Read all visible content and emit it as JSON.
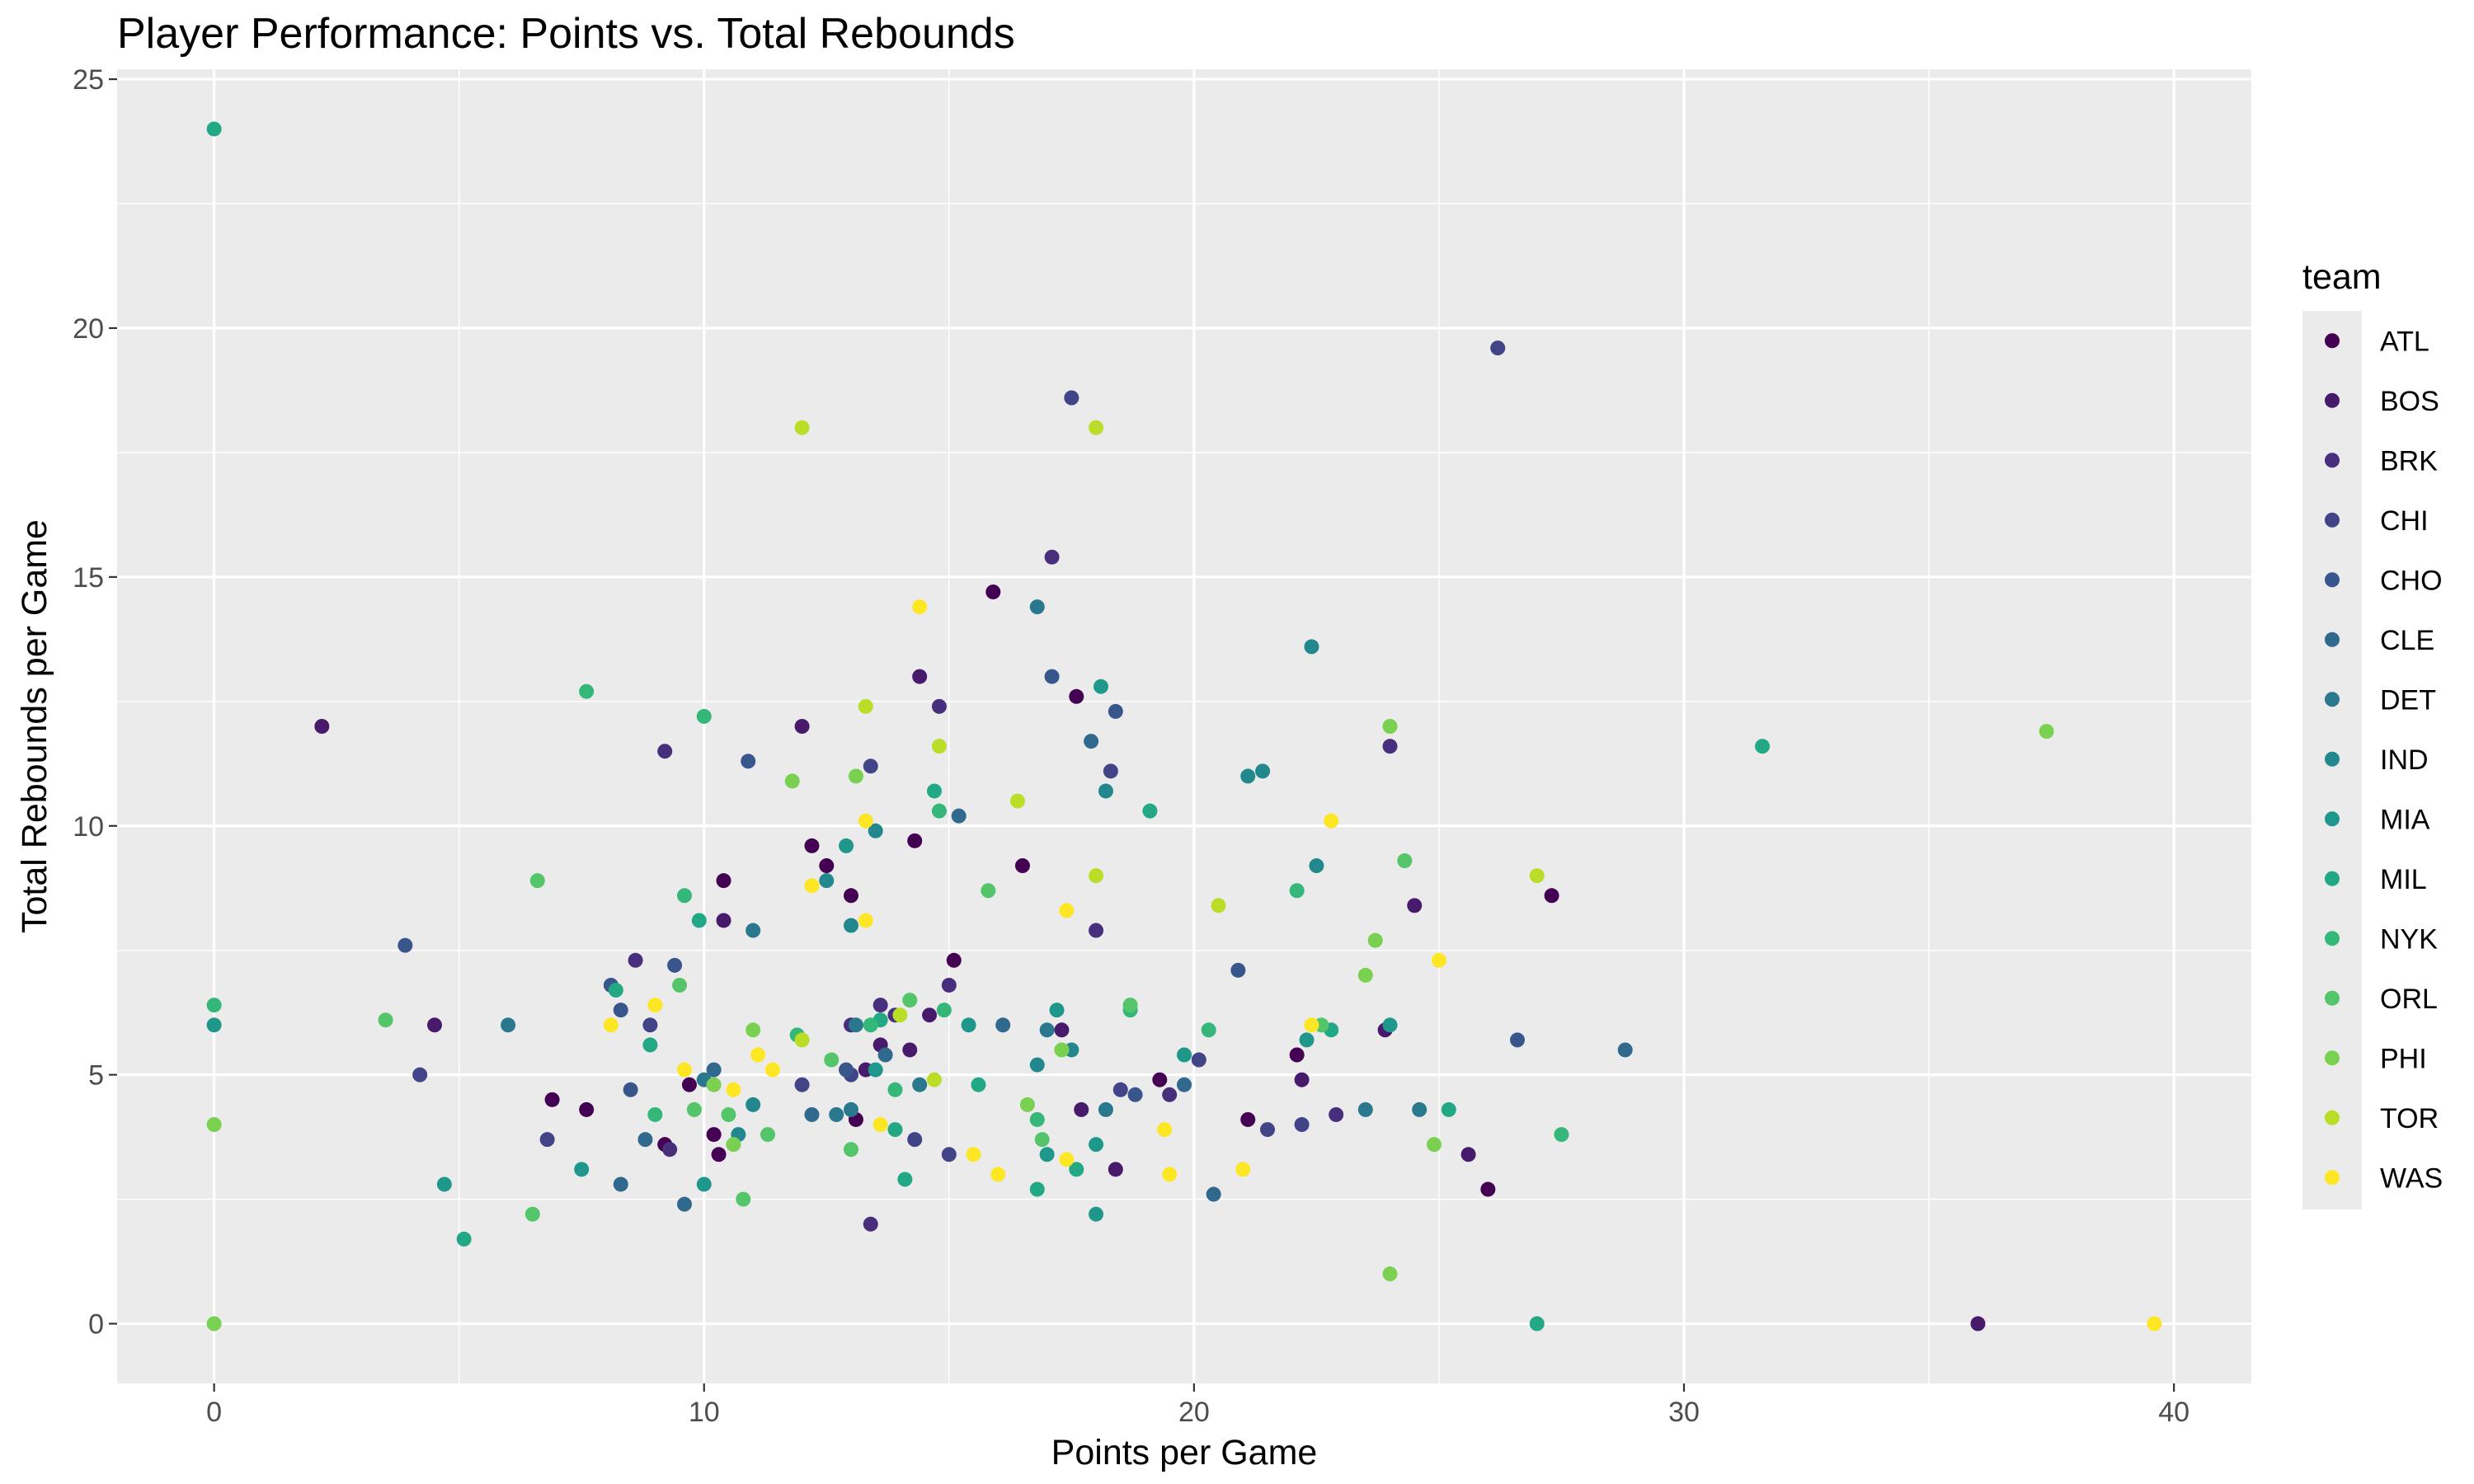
{
  "chart_data": {
    "type": "scatter",
    "title": "Player Performance: Points vs. Total Rebounds",
    "xlabel": "Points per Game",
    "ylabel": "Total Rebounds per Game",
    "xlim": [
      -1.98,
      41.58
    ],
    "ylim": [
      -1.2,
      25.2
    ],
    "x_ticks": [
      0,
      10,
      20,
      30,
      40
    ],
    "y_ticks": [
      0,
      5,
      10,
      15,
      20,
      25
    ],
    "grid": true,
    "legend": {
      "title": "team",
      "placement": "right"
    },
    "series": [
      {
        "name": "ATL",
        "color": "#440154",
        "points": [
          [
            6.9,
            4.5
          ],
          [
            7.6,
            4.3
          ],
          [
            9.2,
            3.6
          ],
          [
            9.7,
            4.8
          ],
          [
            10.2,
            3.8
          ],
          [
            10.3,
            3.4
          ],
          [
            10.4,
            8.9
          ],
          [
            12.2,
            9.6
          ],
          [
            12.5,
            9.2
          ],
          [
            13.0,
            8.6
          ],
          [
            13.1,
            4.1
          ],
          [
            14.3,
            9.7
          ],
          [
            15.1,
            7.3
          ],
          [
            15.9,
            14.7
          ],
          [
            16.5,
            9.2
          ],
          [
            17.6,
            12.6
          ],
          [
            19.3,
            4.9
          ],
          [
            21.1,
            4.1
          ],
          [
            22.1,
            5.4
          ],
          [
            26.0,
            2.7
          ],
          [
            27.3,
            8.6
          ]
        ]
      },
      {
        "name": "BOS",
        "color": "#481A6C",
        "points": [
          [
            2.2,
            12.0
          ],
          [
            4.5,
            6.0
          ],
          [
            10.4,
            8.1
          ],
          [
            12.0,
            12.0
          ],
          [
            13.3,
            5.1
          ],
          [
            13.6,
            5.6
          ],
          [
            14.2,
            5.5
          ],
          [
            14.4,
            13.0
          ],
          [
            14.6,
            6.2
          ],
          [
            17.3,
            5.9
          ],
          [
            17.7,
            4.3
          ],
          [
            18.4,
            3.1
          ],
          [
            22.2,
            4.9
          ],
          [
            23.9,
            5.9
          ],
          [
            24.5,
            8.4
          ],
          [
            25.6,
            3.4
          ],
          [
            36.0,
            0.0
          ]
        ]
      },
      {
        "name": "BRK",
        "color": "#472F7D",
        "points": [
          [
            8.6,
            7.3
          ],
          [
            9.2,
            11.5
          ],
          [
            9.3,
            3.5
          ],
          [
            13.0,
            6.0
          ],
          [
            13.6,
            6.4
          ],
          [
            13.9,
            6.2
          ],
          [
            14.8,
            12.4
          ],
          [
            15.0,
            6.8
          ],
          [
            17.1,
            15.4
          ],
          [
            18.0,
            7.9
          ],
          [
            19.5,
            4.6
          ],
          [
            24.0,
            11.6
          ],
          [
            22.9,
            4.2
          ],
          [
            13.4,
            2.0
          ]
        ]
      },
      {
        "name": "CHI",
        "color": "#414487",
        "points": [
          [
            4.2,
            5.0
          ],
          [
            6.8,
            3.7
          ],
          [
            8.9,
            6.0
          ],
          [
            12.0,
            4.8
          ],
          [
            13.0,
            5.0
          ],
          [
            13.4,
            11.2
          ],
          [
            14.3,
            3.7
          ],
          [
            15.0,
            3.4
          ],
          [
            17.5,
            18.6
          ],
          [
            18.3,
            11.1
          ],
          [
            18.5,
            4.7
          ],
          [
            21.5,
            3.9
          ],
          [
            22.2,
            4.0
          ],
          [
            26.2,
            19.6
          ],
          [
            20.1,
            5.3
          ]
        ]
      },
      {
        "name": "CHO",
        "color": "#39568C",
        "points": [
          [
            3.9,
            7.6
          ],
          [
            8.1,
            6.8
          ],
          [
            8.3,
            6.3
          ],
          [
            8.5,
            4.7
          ],
          [
            9.4,
            7.2
          ],
          [
            10.9,
            11.3
          ],
          [
            12.9,
            5.1
          ],
          [
            17.1,
            13.0
          ],
          [
            18.4,
            12.3
          ],
          [
            18.8,
            4.6
          ],
          [
            20.9,
            7.1
          ],
          [
            26.6,
            5.7
          ]
        ]
      },
      {
        "name": "CLE",
        "color": "#31688E",
        "points": [
          [
            8.3,
            2.8
          ],
          [
            8.8,
            3.7
          ],
          [
            9.6,
            2.4
          ],
          [
            10.2,
            5.1
          ],
          [
            12.2,
            4.2
          ],
          [
            13.7,
            5.4
          ],
          [
            15.2,
            10.2
          ],
          [
            16.1,
            6.0
          ],
          [
            17.9,
            11.7
          ],
          [
            19.8,
            4.8
          ],
          [
            20.4,
            2.6
          ],
          [
            28.8,
            5.5
          ]
        ]
      },
      {
        "name": "DET",
        "color": "#2A788E",
        "points": [
          [
            6.0,
            6.0
          ],
          [
            10.0,
            4.9
          ],
          [
            11.0,
            7.9
          ],
          [
            12.7,
            4.2
          ],
          [
            13.0,
            4.3
          ],
          [
            14.4,
            4.8
          ],
          [
            16.8,
            14.4
          ],
          [
            17.0,
            5.9
          ],
          [
            18.2,
            4.3
          ],
          [
            23.5,
            4.3
          ],
          [
            24.6,
            4.3
          ],
          [
            13.1,
            6.0
          ]
        ]
      },
      {
        "name": "IND",
        "color": "#23888E",
        "points": [
          [
            10.7,
            3.8
          ],
          [
            11.0,
            4.4
          ],
          [
            12.5,
            8.9
          ],
          [
            13.0,
            8.0
          ],
          [
            13.5,
            9.9
          ],
          [
            16.8,
            5.2
          ],
          [
            17.5,
            5.5
          ],
          [
            18.2,
            10.7
          ],
          [
            21.1,
            11.0
          ],
          [
            21.4,
            11.1
          ],
          [
            22.4,
            13.6
          ],
          [
            22.5,
            9.2
          ]
        ]
      },
      {
        "name": "MIA",
        "color": "#1F988B",
        "points": [
          [
            0.0,
            6.0
          ],
          [
            4.7,
            2.8
          ],
          [
            7.5,
            3.1
          ],
          [
            10.0,
            2.8
          ],
          [
            12.9,
            9.6
          ],
          [
            13.5,
            5.1
          ],
          [
            15.4,
            6.0
          ],
          [
            17.0,
            3.4
          ],
          [
            17.2,
            6.3
          ],
          [
            18.0,
            3.6
          ],
          [
            18.1,
            12.8
          ],
          [
            19.8,
            5.4
          ],
          [
            22.3,
            5.7
          ],
          [
            24.0,
            6.0
          ],
          [
            18.0,
            2.2
          ]
        ]
      },
      {
        "name": "MIL",
        "color": "#22A884",
        "points": [
          [
            0.0,
            24.0
          ],
          [
            5.1,
            1.7
          ],
          [
            8.2,
            6.7
          ],
          [
            8.9,
            5.6
          ],
          [
            9.9,
            8.1
          ],
          [
            13.6,
            6.1
          ],
          [
            14.1,
            2.9
          ],
          [
            14.7,
            10.7
          ],
          [
            15.6,
            4.8
          ],
          [
            16.8,
            2.7
          ],
          [
            17.6,
            3.1
          ],
          [
            19.1,
            10.3
          ],
          [
            22.8,
            5.9
          ],
          [
            25.2,
            4.3
          ],
          [
            27.0,
            0.0
          ],
          [
            31.6,
            11.6
          ],
          [
            13.9,
            3.9
          ]
        ]
      },
      {
        "name": "NYK",
        "color": "#35B779",
        "points": [
          [
            0.0,
            6.4
          ],
          [
            7.6,
            12.7
          ],
          [
            9.6,
            8.6
          ],
          [
            10.0,
            12.2
          ],
          [
            11.9,
            5.8
          ],
          [
            13.4,
            6.0
          ],
          [
            13.9,
            4.7
          ],
          [
            14.8,
            10.3
          ],
          [
            14.9,
            6.3
          ],
          [
            16.8,
            4.1
          ],
          [
            18.7,
            6.3
          ],
          [
            20.3,
            5.9
          ],
          [
            22.1,
            8.7
          ],
          [
            27.5,
            3.8
          ],
          [
            9.0,
            4.2
          ]
        ]
      },
      {
        "name": "ORL",
        "color": "#54C568",
        "points": [
          [
            3.5,
            6.1
          ],
          [
            6.5,
            2.2
          ],
          [
            6.6,
            8.9
          ],
          [
            9.5,
            6.8
          ],
          [
            9.8,
            4.3
          ],
          [
            10.8,
            2.5
          ],
          [
            11.3,
            3.8
          ],
          [
            12.6,
            5.3
          ],
          [
            13.0,
            3.5
          ],
          [
            14.2,
            6.5
          ],
          [
            15.8,
            8.7
          ],
          [
            16.9,
            3.7
          ],
          [
            18.7,
            6.4
          ],
          [
            22.6,
            6.0
          ],
          [
            24.3,
            9.3
          ],
          [
            10.5,
            4.2
          ]
        ]
      },
      {
        "name": "PHI",
        "color": "#7AD151",
        "points": [
          [
            0.0,
            0.0
          ],
          [
            0.0,
            4.0
          ],
          [
            10.2,
            4.8
          ],
          [
            11.0,
            5.9
          ],
          [
            11.8,
            10.9
          ],
          [
            13.1,
            11.0
          ],
          [
            16.6,
            4.4
          ],
          [
            17.3,
            5.5
          ],
          [
            23.5,
            7.0
          ],
          [
            23.7,
            7.7
          ],
          [
            24.0,
            1.0
          ],
          [
            24.0,
            12.0
          ],
          [
            24.9,
            3.6
          ],
          [
            37.4,
            11.9
          ],
          [
            10.6,
            3.6
          ]
        ]
      },
      {
        "name": "TOR",
        "color": "#BADE28",
        "points": [
          [
            12.0,
            18.0
          ],
          [
            13.3,
            12.4
          ],
          [
            14.0,
            6.2
          ],
          [
            14.8,
            11.6
          ],
          [
            16.4,
            10.5
          ],
          [
            18.0,
            9.0
          ],
          [
            18.0,
            18.0
          ],
          [
            20.5,
            8.4
          ],
          [
            27.0,
            9.0
          ],
          [
            14.7,
            4.9
          ],
          [
            12.0,
            5.7
          ]
        ]
      },
      {
        "name": "WAS",
        "color": "#FDE725",
        "points": [
          [
            8.1,
            6.0
          ],
          [
            9.0,
            6.4
          ],
          [
            9.6,
            5.1
          ],
          [
            10.6,
            4.7
          ],
          [
            11.1,
            5.4
          ],
          [
            11.4,
            5.1
          ],
          [
            12.2,
            8.8
          ],
          [
            13.3,
            10.1
          ],
          [
            13.3,
            8.1
          ],
          [
            13.6,
            4.0
          ],
          [
            14.4,
            14.4
          ],
          [
            15.5,
            3.4
          ],
          [
            16.0,
            3.0
          ],
          [
            17.4,
            8.3
          ],
          [
            17.4,
            3.3
          ],
          [
            19.4,
            3.9
          ],
          [
            19.5,
            3.0
          ],
          [
            21.0,
            3.1
          ],
          [
            22.4,
            6.0
          ],
          [
            22.8,
            10.1
          ],
          [
            25.0,
            7.3
          ],
          [
            39.6,
            0.0
          ]
        ]
      }
    ]
  }
}
